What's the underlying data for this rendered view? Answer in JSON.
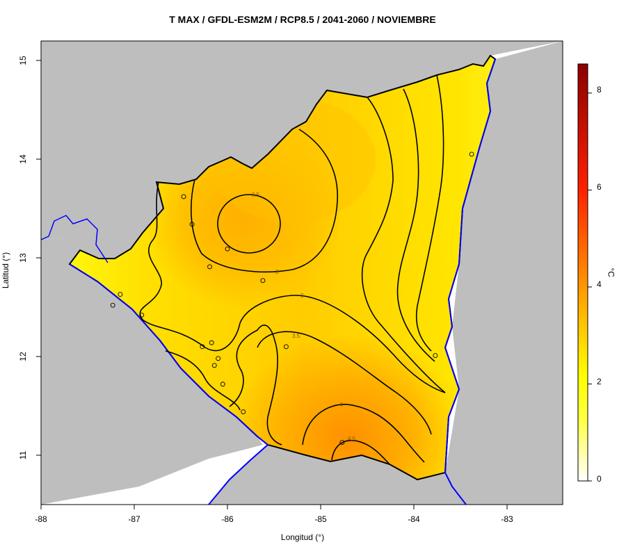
{
  "title": "T MAX / GFDL-ESM2M / RCP8.5 / 2041-2060 / NOVIEMBRE",
  "xlabel": "Longitud (°)",
  "ylabel": "Latitud (°)",
  "x_ticks": [
    "-88",
    "-87",
    "-86",
    "-85",
    "-84",
    "-83"
  ],
  "y_ticks": [
    "11",
    "12",
    "13",
    "14",
    "15"
  ],
  "colorbar": {
    "ticks": [
      "0",
      "2",
      "4",
      "6",
      "8"
    ],
    "unit": "°C",
    "colors": [
      "#ffffff",
      "#ffff00",
      "#ffa500",
      "#ff2000",
      "#8b0000"
    ]
  },
  "contour_labels": [
    "3.5",
    "3",
    "3",
    "3.5",
    "4",
    "4.5"
  ],
  "colors": {
    "land_outside": "#bebebe",
    "coastline": "#0000ff",
    "border": "#000000"
  },
  "chart_data": {
    "type": "heatmap",
    "title": "T MAX / GFDL-ESM2M / RCP8.5 / 2041-2060 / NOVIEMBRE",
    "xlabel": "Longitud (°)",
    "ylabel": "Latitud (°)",
    "xlim": [
      -88,
      -82.4
    ],
    "ylim": [
      10.5,
      15.2
    ],
    "value_range": [
      0,
      8.6
    ],
    "unit": "°C",
    "contour_levels": [
      3,
      3.5,
      4,
      4.5
    ],
    "stations": [
      {
        "lon": -86.47,
        "lat": 13.62
      },
      {
        "lon": -86.38,
        "lat": 13.34
      },
      {
        "lon": -86.0,
        "lat": 13.09
      },
      {
        "lon": -86.19,
        "lat": 12.91
      },
      {
        "lon": -85.62,
        "lat": 12.77
      },
      {
        "lon": -87.15,
        "lat": 12.63
      },
      {
        "lon": -87.23,
        "lat": 12.52
      },
      {
        "lon": -86.92,
        "lat": 12.42
      },
      {
        "lon": -86.27,
        "lat": 12.1
      },
      {
        "lon": -86.17,
        "lat": 12.14
      },
      {
        "lon": -86.1,
        "lat": 11.98
      },
      {
        "lon": -86.14,
        "lat": 11.91
      },
      {
        "lon": -86.05,
        "lat": 11.72
      },
      {
        "lon": -85.83,
        "lat": 11.44
      },
      {
        "lon": -85.37,
        "lat": 12.1
      },
      {
        "lon": -84.77,
        "lat": 11.13
      },
      {
        "lon": -83.77,
        "lat": 12.01
      },
      {
        "lon": -83.38,
        "lat": 14.05
      }
    ]
  }
}
